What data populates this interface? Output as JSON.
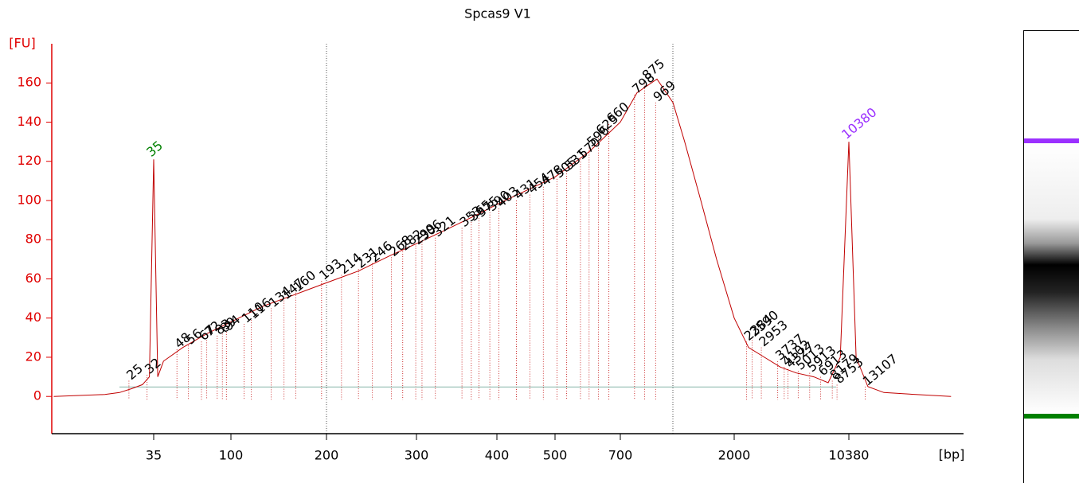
{
  "chart_data": {
    "type": "electropherogram",
    "title": "Spcas9 V1",
    "y_label": "[FU]",
    "x_label": "[bp]",
    "ylim": [
      -19,
      180
    ],
    "yticks": [
      0,
      20,
      40,
      60,
      80,
      100,
      120,
      140,
      160
    ],
    "xlim": [
      9,
      45000
    ],
    "xticks": [
      35,
      100,
      200,
      300,
      400,
      500,
      700,
      2000,
      10380
    ],
    "trace": {
      "color": "#c00000",
      "x": [
        9,
        18,
        22,
        26,
        30,
        33,
        35,
        37,
        40,
        52,
        72,
        100,
        126,
        159,
        200,
        231,
        267,
        300,
        333,
        374,
        400,
        447,
        500,
        597,
        700,
        816,
        981,
        1137,
        1267,
        1470,
        1701,
        2000,
        2457,
        3089,
        3882,
        4880,
        6275,
        7708,
        9170,
        10380,
        11520,
        13640,
        17160,
        27160,
        45000
      ],
      "y": [
        0,
        1,
        2,
        4,
        6,
        10,
        121,
        10,
        18,
        25,
        32,
        38,
        46,
        52,
        58,
        64,
        72,
        78,
        85,
        93,
        98,
        105,
        112,
        125,
        140,
        155,
        162,
        150,
        130,
        100,
        70,
        40,
        25,
        20,
        15,
        12,
        10,
        7,
        20,
        130,
        20,
        5,
        2,
        1,
        0
      ]
    },
    "peaks": {
      "color": "#000000",
      "x": [
        25,
        32,
        48,
        56,
        67,
        72,
        83,
        89,
        94,
        110,
        116,
        134,
        147,
        160,
        193,
        214,
        231,
        246,
        268,
        282,
        299,
        306,
        321,
        353,
        365,
        375,
        390,
        403,
        431,
        454,
        478,
        505,
        531,
        570,
        596,
        625,
        660,
        798,
        875,
        969,
        2384,
        2590,
        2953,
        3737,
        4102,
        4327,
        5013,
        5913,
        6913,
        8179,
        8753,
        13107
      ],
      "y": [
        8,
        11,
        24,
        26,
        28,
        30,
        31,
        32,
        33,
        37,
        39,
        45,
        49,
        53,
        59,
        62,
        65,
        68,
        71,
        74,
        77,
        79,
        81,
        86,
        89,
        91,
        94,
        96,
        100,
        103,
        107,
        111,
        115,
        121,
        127,
        133,
        139,
        154,
        161,
        150,
        28,
        30,
        25,
        18,
        15,
        14,
        13,
        12,
        10,
        8,
        6,
        5
      ]
    },
    "lower_marker": {
      "x": 35,
      "y": 121,
      "color": "#008000"
    },
    "upper_marker": {
      "x": 10380,
      "y": 130,
      "color": "#9b30ff"
    }
  }
}
